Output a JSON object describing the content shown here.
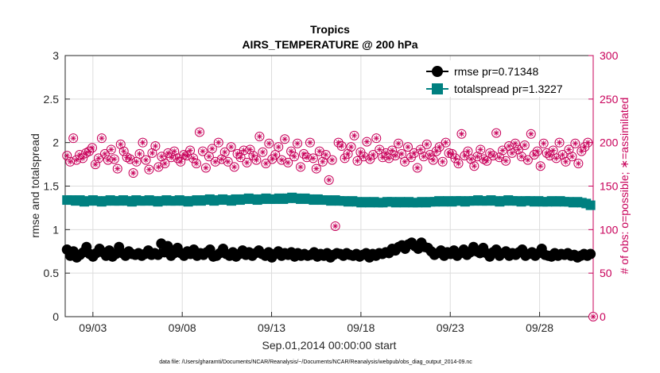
{
  "chart_data": {
    "type": "line",
    "title": "Tropics",
    "subtitle": "AIRS_TEMPERATURE @ 200 hPa",
    "xlabel": "Sep.01,2014 00:00:00 start",
    "ylabel_left": "rmse and totalspread",
    "ylabel_right": "# of obs: o=possible; ∗=assimilated",
    "ylim_left": [
      0,
      3
    ],
    "ylim_right": [
      0,
      300
    ],
    "yticks_left": [
      "0",
      "0.5",
      "1",
      "1.5",
      "2",
      "2.5",
      "3"
    ],
    "yticks_right": [
      "0",
      "50",
      "100",
      "150",
      "200",
      "250",
      "300"
    ],
    "xlim_days": [
      1.45,
      31.0
    ],
    "x_ticks": [
      {
        "day": 3,
        "label": "09/03"
      },
      {
        "day": 8,
        "label": "09/08"
      },
      {
        "day": 13,
        "label": "09/13"
      },
      {
        "day": 18,
        "label": "09/18"
      },
      {
        "day": 23,
        "label": "09/23"
      },
      {
        "day": 28,
        "label": "09/28"
      }
    ],
    "legend": [
      {
        "label": "rmse pr=0.71348",
        "color": "#000000",
        "marker": "circle"
      },
      {
        "label": "totalspread pr=1.3227",
        "color": "#008080",
        "marker": "square"
      }
    ],
    "footnote": "data file: /Users/gharamti/Documents/NCAR/Reanalysis/~/Documents/NCAR/Reanalysis/webpub/obs_diag_output_2014-09.nc",
    "obs_color": "#c8005a",
    "final_obs_count": 0,
    "rmse_values": [
      0.77,
      0.7,
      0.75,
      0.68,
      0.71,
      0.74,
      0.8,
      0.72,
      0.69,
      0.73,
      0.78,
      0.74,
      0.7,
      0.76,
      0.69,
      0.72,
      0.8,
      0.73,
      0.7,
      0.75,
      0.72,
      0.71,
      0.73,
      0.7,
      0.72,
      0.76,
      0.71,
      0.73,
      0.71,
      0.84,
      0.74,
      0.81,
      0.7,
      0.73,
      0.79,
      0.73,
      0.7,
      0.75,
      0.72,
      0.77,
      0.7,
      0.73,
      0.71,
      0.74,
      0.77,
      0.69,
      0.7,
      0.73,
      0.78,
      0.72,
      0.7,
      0.74,
      0.69,
      0.72,
      0.76,
      0.71,
      0.74,
      0.7,
      0.73,
      0.76,
      0.72,
      0.7,
      0.74,
      0.68,
      0.72,
      0.75,
      0.7,
      0.73,
      0.71,
      0.74,
      0.69,
      0.73,
      0.7,
      0.72,
      0.7,
      0.71,
      0.74,
      0.69,
      0.72,
      0.7,
      0.73,
      0.68,
      0.71,
      0.73,
      0.72,
      0.7,
      0.73,
      0.71,
      0.7,
      0.72,
      0.69,
      0.71,
      0.73,
      0.68,
      0.72,
      0.7,
      0.73,
      0.72,
      0.74,
      0.73,
      0.78,
      0.76,
      0.8,
      0.82,
      0.78,
      0.83,
      0.85,
      0.81,
      0.78,
      0.85,
      0.8,
      0.79,
      0.75,
      0.71,
      0.73,
      0.76,
      0.7,
      0.74,
      0.72,
      0.76,
      0.7,
      0.73,
      0.77,
      0.71,
      0.74,
      0.8,
      0.75,
      0.73,
      0.79,
      0.73,
      0.69,
      0.74,
      0.77,
      0.7,
      0.73,
      0.75,
      0.7,
      0.73,
      0.71,
      0.74,
      0.77,
      0.7,
      0.72,
      0.74,
      0.7,
      0.73,
      0.78,
      0.71,
      0.7,
      0.69,
      0.73,
      0.7,
      0.72,
      0.71,
      0.73,
      0.7,
      0.71,
      0.68,
      0.7,
      0.72,
      0.7,
      0.72
    ],
    "spread_values": [
      1.34,
      1.34,
      1.33,
      1.34,
      1.32,
      1.33,
      1.34,
      1.33,
      1.32,
      1.33,
      1.34,
      1.33,
      1.33,
      1.34,
      1.33,
      1.32,
      1.34,
      1.33,
      1.33,
      1.34,
      1.33,
      1.32,
      1.33,
      1.34,
      1.33,
      1.33,
      1.34,
      1.33,
      1.32,
      1.33,
      1.34,
      1.33,
      1.34,
      1.35,
      1.33,
      1.34,
      1.35,
      1.34,
      1.33,
      1.35,
      1.34,
      1.35,
      1.36,
      1.35,
      1.34,
      1.35,
      1.36,
      1.35,
      1.35,
      1.36,
      1.35,
      1.36,
      1.37,
      1.36,
      1.35,
      1.36,
      1.35,
      1.34,
      1.35,
      1.34,
      1.34,
      1.33,
      1.34,
      1.33,
      1.33,
      1.32,
      1.33,
      1.32,
      1.31,
      1.32,
      1.31,
      1.32,
      1.31,
      1.31,
      1.32,
      1.32,
      1.31,
      1.32,
      1.31,
      1.32,
      1.31,
      1.31,
      1.32,
      1.31,
      1.32,
      1.32,
      1.33,
      1.32,
      1.33,
      1.32,
      1.33,
      1.33,
      1.32,
      1.33,
      1.33,
      1.34,
      1.33,
      1.33,
      1.34,
      1.33,
      1.32,
      1.33,
      1.34,
      1.33,
      1.33,
      1.32,
      1.33,
      1.33,
      1.32,
      1.33,
      1.32,
      1.32,
      1.33,
      1.32,
      1.33,
      1.32,
      1.32,
      1.31,
      1.32,
      1.31,
      1.3,
      1.28
    ],
    "obs_values": [
      185,
      178,
      205,
      180,
      186,
      182,
      188,
      190,
      194,
      175,
      182,
      205,
      187,
      180,
      192,
      181,
      170,
      198,
      190,
      183,
      181,
      165,
      178,
      187,
      200,
      180,
      169,
      188,
      196,
      172,
      184,
      176,
      188,
      183,
      190,
      182,
      178,
      186,
      185,
      191,
      182,
      176,
      212,
      190,
      171,
      184,
      193,
      178,
      200,
      181,
      189,
      178,
      195,
      172,
      187,
      183,
      191,
      177,
      192,
      185,
      180,
      207,
      189,
      176,
      199,
      181,
      186,
      195,
      180,
      204,
      177,
      190,
      184,
      199,
      172,
      187,
      183,
      200,
      182,
      170,
      190,
      178,
      186,
      157,
      180,
      104,
      200,
      196,
      182,
      187,
      195,
      208,
      179,
      189,
      184,
      201,
      181,
      186,
      205,
      192,
      183,
      188,
      182,
      191,
      185,
      199,
      187,
      178,
      195,
      183,
      188,
      171,
      192,
      184,
      198,
      186,
      180,
      190,
      195,
      178,
      200,
      188,
      187,
      182,
      176,
      210,
      185,
      190,
      181,
      173,
      184,
      192,
      181,
      179,
      188,
      185,
      211,
      183,
      191,
      179,
      196,
      188,
      199,
      192,
      184,
      197,
      180,
      210,
      186,
      190,
      173,
      199,
      188,
      185,
      191,
      182,
      200,
      186,
      178,
      192,
      184,
      199,
      176,
      190,
      195,
      200
    ]
  }
}
